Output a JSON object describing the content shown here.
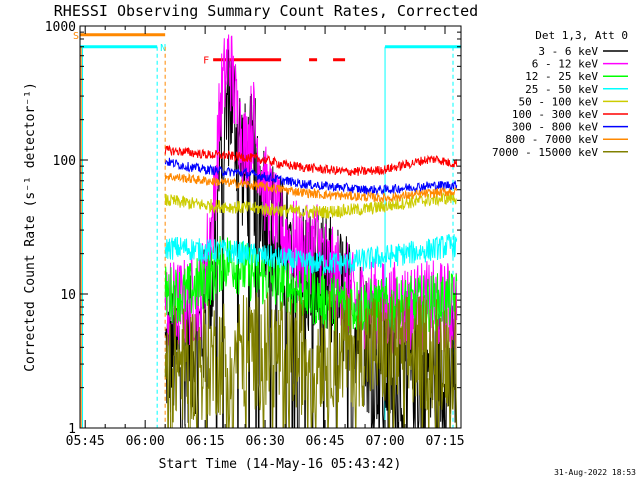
{
  "chart_data": {
    "type": "line",
    "title": "RHESSI Observing Summary Count Rates, Corrected",
    "xlabel": "Start Time (14-May-16 05:43:42)",
    "ylabel": "Corrected Count Rate (s⁻¹ detector⁻¹)",
    "x_unit": "minutes after 05:43:42",
    "xlim": [
      "05:43:42",
      "07:19:00"
    ],
    "x_ticks": [
      "05:45",
      "06:00",
      "06:15",
      "06:30",
      "06:45",
      "07:00",
      "07:15"
    ],
    "y_scale": "log",
    "ylim": [
      1,
      1000
    ],
    "y_ticks": [
      "1",
      "10",
      "100",
      "1000"
    ],
    "legend_title": "Det 1,3, Att 0",
    "legend_placement": "right",
    "footer": "31-Aug-2022 18:53",
    "data_start": "06:05",
    "series": [
      {
        "name": "3 - 6 keV",
        "color": "#000000",
        "points": [
          [
            "06:05",
            3.5
          ],
          [
            "06:10",
            3.5
          ],
          [
            "06:14",
            5
          ],
          [
            "06:17",
            15
          ],
          [
            "06:19",
            120
          ],
          [
            "06:21",
            320
          ],
          [
            "06:23",
            170
          ],
          [
            "06:25",
            80
          ],
          [
            "06:27",
            95
          ],
          [
            "06:30",
            45
          ],
          [
            "06:33",
            25
          ],
          [
            "06:36",
            18
          ],
          [
            "06:40",
            15
          ],
          [
            "06:45",
            12
          ],
          [
            "06:50",
            9
          ],
          [
            "06:53",
            7
          ],
          [
            "06:56",
            4
          ],
          [
            "06:59",
            3.2
          ],
          [
            "07:03",
            2.5
          ],
          [
            "07:08",
            2.5
          ],
          [
            "07:12",
            2.5
          ],
          [
            "07:16",
            2.5
          ]
        ]
      },
      {
        "name": "6 - 12 keV",
        "color": "#ff00ff",
        "points": [
          [
            "06:05",
            8
          ],
          [
            "06:10",
            8.5
          ],
          [
            "06:14",
            10
          ],
          [
            "06:17",
            40
          ],
          [
            "06:19",
            300
          ],
          [
            "06:21",
            600
          ],
          [
            "06:23",
            220
          ],
          [
            "06:25",
            120
          ],
          [
            "06:27",
            200
          ],
          [
            "06:30",
            60
          ],
          [
            "06:33",
            35
          ],
          [
            "06:36",
            25
          ],
          [
            "06:40",
            20
          ],
          [
            "06:43",
            25
          ],
          [
            "06:46",
            15
          ],
          [
            "06:50",
            12
          ],
          [
            "06:53",
            8
          ],
          [
            "06:56",
            9
          ],
          [
            "07:00",
            8
          ],
          [
            "07:05",
            8
          ],
          [
            "07:10",
            8
          ],
          [
            "07:16",
            8
          ]
        ]
      },
      {
        "name": "12 - 25 keV",
        "color": "#00ff00",
        "points": [
          [
            "06:05",
            10
          ],
          [
            "06:10",
            10
          ],
          [
            "06:14",
            12
          ],
          [
            "06:17",
            14
          ],
          [
            "06:19",
            17
          ],
          [
            "06:21",
            18
          ],
          [
            "06:25",
            15
          ],
          [
            "06:30",
            13
          ],
          [
            "06:35",
            12
          ],
          [
            "06:40",
            10
          ],
          [
            "06:45",
            9
          ],
          [
            "06:50",
            8.5
          ],
          [
            "06:55",
            8
          ],
          [
            "07:00",
            8
          ],
          [
            "07:05",
            8.2
          ],
          [
            "07:10",
            8.5
          ],
          [
            "07:16",
            9
          ]
        ]
      },
      {
        "name": "25 - 50 keV",
        "color": "#00ffff",
        "points": [
          [
            "06:05",
            22
          ],
          [
            "06:10",
            22
          ],
          [
            "06:15",
            21
          ],
          [
            "06:20",
            21
          ],
          [
            "06:25",
            20
          ],
          [
            "06:30",
            19
          ],
          [
            "06:35",
            18
          ],
          [
            "06:40",
            17
          ],
          [
            "06:45",
            17
          ],
          [
            "06:50",
            17
          ],
          [
            "06:55",
            18
          ],
          [
            "07:00",
            19
          ],
          [
            "07:05",
            20
          ],
          [
            "07:10",
            21
          ],
          [
            "07:16",
            23
          ]
        ]
      },
      {
        "name": "50 - 100 keV",
        "color": "#cccc00",
        "points": [
          [
            "06:05",
            50
          ],
          [
            "06:10",
            48
          ],
          [
            "06:15",
            46
          ],
          [
            "06:20",
            45
          ],
          [
            "06:25",
            44
          ],
          [
            "06:30",
            43
          ],
          [
            "06:35",
            42
          ],
          [
            "06:40",
            41
          ],
          [
            "06:45",
            41
          ],
          [
            "06:50",
            42
          ],
          [
            "06:55",
            43
          ],
          [
            "07:00",
            45
          ],
          [
            "07:05",
            48
          ],
          [
            "07:10",
            50
          ],
          [
            "07:16",
            52
          ]
        ]
      },
      {
        "name": "100 - 300 keV",
        "color": "#ff0000",
        "points": [
          [
            "06:05",
            118
          ],
          [
            "06:10",
            115
          ],
          [
            "06:15",
            110
          ],
          [
            "06:20",
            108
          ],
          [
            "06:25",
            105
          ],
          [
            "06:30",
            100
          ],
          [
            "06:35",
            92
          ],
          [
            "06:40",
            88
          ],
          [
            "06:45",
            85
          ],
          [
            "06:50",
            82
          ],
          [
            "06:55",
            82
          ],
          [
            "07:00",
            85
          ],
          [
            "07:05",
            92
          ],
          [
            "07:10",
            100
          ],
          [
            "07:13",
            102
          ],
          [
            "07:16",
            95
          ]
        ]
      },
      {
        "name": "300 - 800 keV",
        "color": "#0000ff",
        "points": [
          [
            "06:05",
            98
          ],
          [
            "06:10",
            90
          ],
          [
            "06:15",
            85
          ],
          [
            "06:20",
            82
          ],
          [
            "06:25",
            80
          ],
          [
            "06:30",
            75
          ],
          [
            "06:35",
            70
          ],
          [
            "06:40",
            66
          ],
          [
            "06:45",
            64
          ],
          [
            "06:50",
            62
          ],
          [
            "06:55",
            60
          ],
          [
            "07:00",
            60
          ],
          [
            "07:05",
            62
          ],
          [
            "07:10",
            64
          ],
          [
            "07:16",
            65
          ]
        ]
      },
      {
        "name": "800 - 7000 keV",
        "color": "#ff8800",
        "points": [
          [
            "06:05",
            76
          ],
          [
            "06:10",
            73
          ],
          [
            "06:15",
            70
          ],
          [
            "06:20",
            68
          ],
          [
            "06:25",
            66
          ],
          [
            "06:30",
            63
          ],
          [
            "06:35",
            60
          ],
          [
            "06:40",
            57
          ],
          [
            "06:45",
            55
          ],
          [
            "06:50",
            54
          ],
          [
            "06:55",
            53
          ],
          [
            "07:00",
            52
          ],
          [
            "07:05",
            54
          ],
          [
            "07:10",
            56
          ],
          [
            "07:16",
            58
          ]
        ]
      },
      {
        "name": "7000 - 15000 keV",
        "color": "#808000",
        "points": [
          [
            "06:05",
            3
          ],
          [
            "06:10",
            3
          ],
          [
            "06:15",
            3.2
          ],
          [
            "06:20",
            3.5
          ],
          [
            "06:25",
            3.8
          ],
          [
            "06:30",
            3.8
          ],
          [
            "06:35",
            3.5
          ],
          [
            "06:40",
            3.5
          ],
          [
            "06:45",
            3.8
          ],
          [
            "06:50",
            4
          ],
          [
            "06:55",
            4
          ],
          [
            "07:00",
            3.8
          ],
          [
            "07:05",
            3.6
          ],
          [
            "07:10",
            3.7
          ],
          [
            "07:16",
            3.8
          ]
        ]
      }
    ],
    "flags": [
      {
        "label": "S",
        "color": "#ff8800",
        "level": 860,
        "start": "05:43:42",
        "end": "06:05"
      },
      {
        "label": "N",
        "color": "#00ffff",
        "level": 700,
        "start": "05:43:42",
        "end": "06:03"
      },
      {
        "label": "",
        "color": "#00ffff",
        "level": 700,
        "start": "07:00",
        "end": "07:19:00"
      },
      {
        "label": "F",
        "color": "#ff0000",
        "level": 560,
        "segments": [
          [
            "06:17",
            "06:34"
          ],
          [
            "06:41",
            "06:43"
          ],
          [
            "06:47",
            "06:50"
          ]
        ]
      }
    ],
    "vlines": [
      {
        "time": "05:44",
        "color": "#ff8800",
        "style": "solid"
      },
      {
        "time": "05:44:20",
        "color": "#00ffff",
        "style": "solid"
      },
      {
        "time": "06:03",
        "color": "#00ffff",
        "style": "dashed"
      },
      {
        "time": "06:05",
        "color": "#ff8800",
        "style": "dashed"
      },
      {
        "time": "07:00",
        "color": "#00ffff",
        "style": "solid"
      },
      {
        "time": "07:17",
        "color": "#00ffff",
        "style": "dashed"
      }
    ]
  }
}
